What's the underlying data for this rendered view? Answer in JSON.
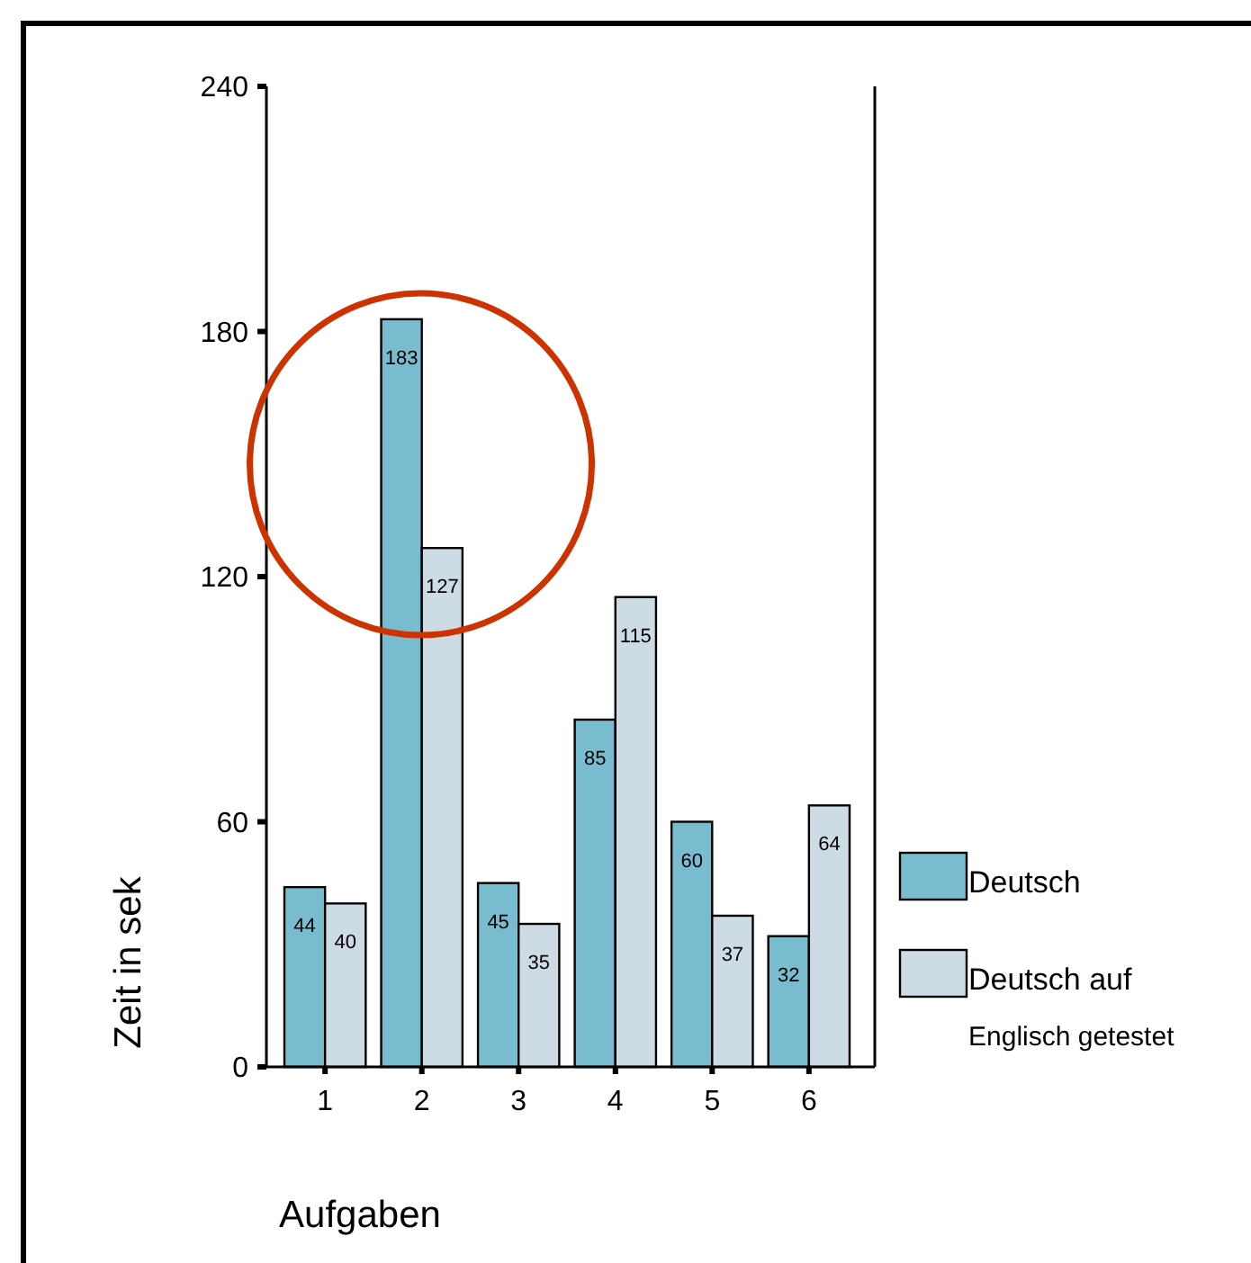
{
  "chart_data": {
    "type": "bar",
    "xlabel": "Aufgaben",
    "ylabel": "Zeit in sek",
    "categories": [
      "1",
      "2",
      "3",
      "4",
      "5",
      "6"
    ],
    "series": [
      {
        "name": "Deutsch",
        "color": "#79bccf",
        "values": [
          44,
          183,
          45,
          85,
          60,
          32
        ]
      },
      {
        "name": "Deutsch auf Englisch getestet",
        "color": "#cddce4",
        "values": [
          40,
          127,
          35,
          115,
          37,
          64
        ]
      }
    ],
    "ylim": [
      0,
      240
    ],
    "yticks": [
      0,
      60,
      120,
      180,
      240
    ],
    "grid": false,
    "legend": "right",
    "data_labels": true
  }
}
